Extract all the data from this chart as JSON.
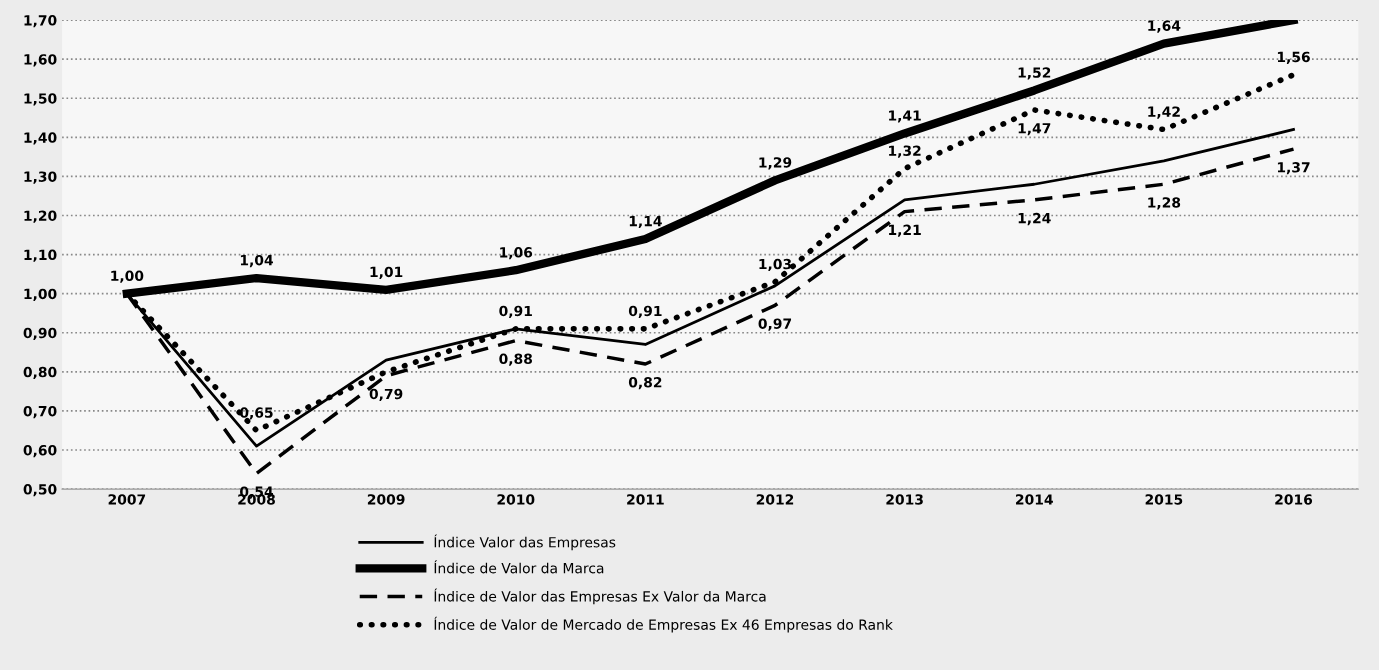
{
  "chart_data": {
    "type": "line",
    "categories": [
      "2007",
      "2008",
      "2009",
      "2010",
      "2011",
      "2012",
      "2013",
      "2014",
      "2015",
      "2016"
    ],
    "ylim": [
      0.5,
      1.7
    ],
    "yticks": [
      {
        "value": 0.5,
        "label": "0,50"
      },
      {
        "value": 0.6,
        "label": "0,60"
      },
      {
        "value": 0.7,
        "label": "0,70"
      },
      {
        "value": 0.8,
        "label": "0,80"
      },
      {
        "value": 0.9,
        "label": "0,90"
      },
      {
        "value": 1.0,
        "label": "1,00"
      },
      {
        "value": 1.1,
        "label": "1,10"
      },
      {
        "value": 1.2,
        "label": "1,20"
      },
      {
        "value": 1.3,
        "label": "1,30"
      },
      {
        "value": 1.4,
        "label": "1,40"
      },
      {
        "value": 1.5,
        "label": "1,50"
      },
      {
        "value": 1.6,
        "label": "1,60"
      },
      {
        "value": 1.7,
        "label": "1,70"
      }
    ],
    "grid": "y",
    "legend": "bottom",
    "marker": "none",
    "series": [
      {
        "name": "Índice Valor das Empresas",
        "color": "#000000",
        "line_style": "solid",
        "values": [
          1.0,
          0.61,
          0.83,
          0.91,
          0.87,
          1.02,
          1.24,
          1.28,
          1.34,
          1.42
        ]
      },
      {
        "name": "Índice de Valor da Marca",
        "color": "#000000",
        "line_style": "solid",
        "values": [
          1.0,
          1.04,
          1.01,
          1.06,
          1.14,
          1.29,
          1.41,
          1.52,
          1.64,
          1.7
        ],
        "value_labels": [
          "1,00",
          "1,04",
          "1,01",
          "1,06",
          "1,14",
          "1,29",
          "1,41",
          "1,52",
          "1,64",
          null
        ]
      },
      {
        "name": "Índice de Valor das Empresas Ex Valor da Marca",
        "color": "#000000",
        "line_style": "dashed",
        "values": [
          1.0,
          0.54,
          0.79,
          0.88,
          0.82,
          0.97,
          1.21,
          1.24,
          1.28,
          1.37
        ],
        "value_labels": [
          null,
          "0,54",
          "0,79",
          "0,88",
          "0,82",
          "0,97",
          "1,21",
          "1,24",
          "1,28",
          "1,37"
        ]
      },
      {
        "name": "Índice de Valor de Mercado de Empresas Ex 46 Empresas do Rank",
        "color": "#000000",
        "line_style": "dotted",
        "values": [
          1.0,
          0.65,
          0.8,
          0.91,
          0.91,
          1.03,
          1.32,
          1.47,
          1.42,
          1.56
        ],
        "value_labels": [
          null,
          "0,65",
          null,
          "0,91",
          "0,91",
          "1,03",
          "1,32",
          "1,47",
          "1,42",
          "1,56"
        ]
      }
    ]
  }
}
